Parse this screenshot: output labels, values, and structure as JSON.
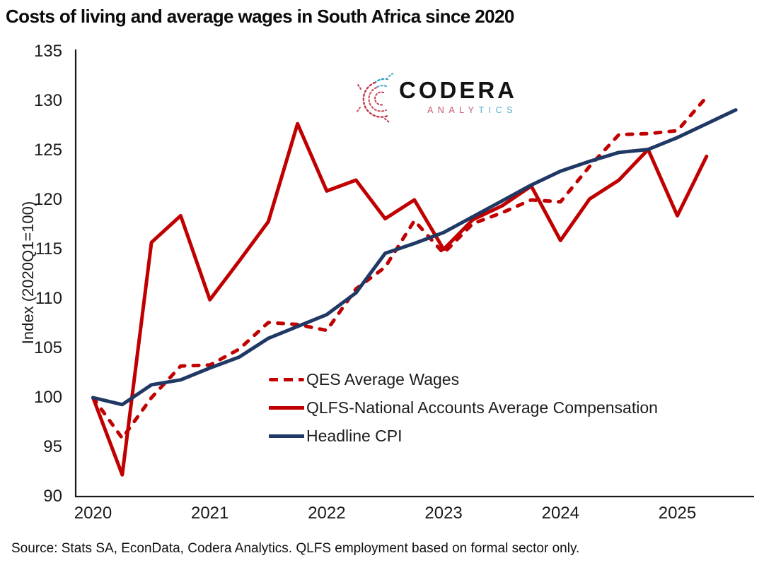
{
  "title": "Costs of living and average wages in South Africa since 2020",
  "source_note": "Source: Stats SA, EconData, Codera Analytics. QLFS employment based on formal sector only.",
  "logo": {
    "wordmark": "CODERA",
    "subtitle_left": "ANALY",
    "subtitle_right": "TICS"
  },
  "chart_data": {
    "type": "line",
    "title": "Costs of living and average wages in South Africa since 2020",
    "xlabel": "",
    "ylabel": "Index (2020Q1=100)",
    "ylim": [
      90,
      135
    ],
    "yticks": [
      90,
      95,
      100,
      105,
      110,
      115,
      120,
      125,
      130,
      135
    ],
    "x_year_labels": [
      "2020",
      "2021",
      "2022",
      "2023",
      "2024",
      "2025"
    ],
    "x_frequency": "quarterly",
    "grid": false,
    "legend_position": "inside lower-left",
    "quarters": [
      "2020Q1",
      "2020Q2",
      "2020Q3",
      "2020Q4",
      "2021Q1",
      "2021Q2",
      "2021Q3",
      "2021Q4",
      "2022Q1",
      "2022Q2",
      "2022Q3",
      "2022Q4",
      "2023Q1",
      "2023Q2",
      "2023Q3",
      "2023Q4",
      "2024Q1",
      "2024Q2",
      "2024Q3",
      "2024Q4",
      "2025Q1",
      "2025Q2",
      "2025Q3"
    ],
    "series": [
      {
        "name": "QES Average Wages",
        "color": "#C00000",
        "style": "dashed",
        "values": [
          100,
          95.9,
          100,
          103.2,
          103.3,
          104.9,
          107.6,
          107.4,
          106.8,
          111,
          113.2,
          117.9,
          114.6,
          117.6,
          118.7,
          120,
          119.8,
          123.4,
          126.6,
          126.7,
          127,
          130.4
        ]
      },
      {
        "name": "QLFS-National Accounts Average Compensation",
        "color": "#C00000",
        "style": "solid",
        "values": [
          100,
          92.2,
          115.7,
          118.4,
          109.9,
          113.8,
          117.8,
          127.7,
          120.9,
          122,
          118.1,
          120,
          115,
          118,
          119.4,
          121.4,
          115.9,
          120.1,
          122,
          125.1,
          118.4,
          124.4
        ]
      },
      {
        "name": "Headline CPI",
        "color": "#1F3864",
        "style": "solid",
        "values": [
          100,
          99.3,
          101.3,
          101.8,
          103,
          104.1,
          106,
          107.2,
          108.4,
          110.6,
          114.6,
          115.6,
          116.7,
          118.3,
          119.9,
          121.5,
          122.9,
          123.9,
          124.8,
          125.1,
          126.3,
          127.7,
          129.1
        ]
      }
    ]
  }
}
